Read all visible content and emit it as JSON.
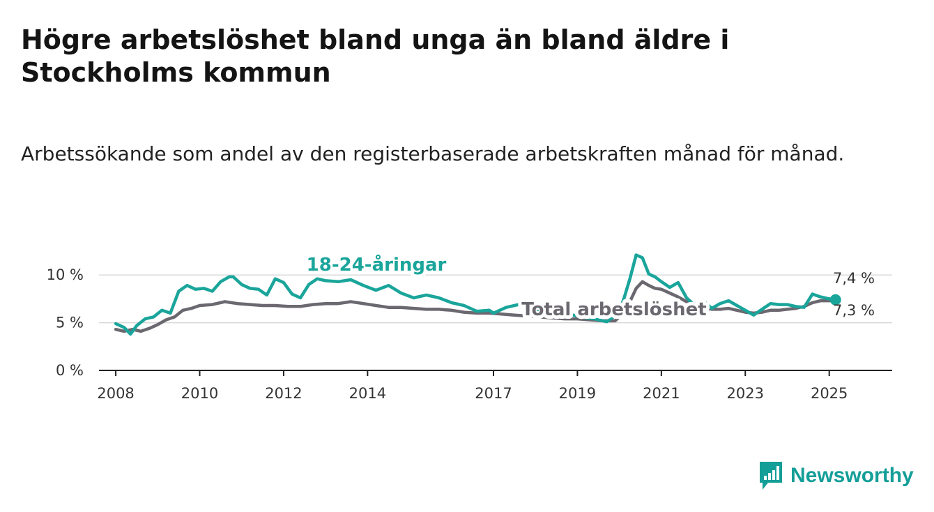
{
  "title": "Högre arbetslöshet bland unga än bland äldre i Stockholms kommun",
  "subtitle": "Arbetssökande som andel av den registerbaserade arbetskraften månad för månad.",
  "brand": "Newsworthy",
  "colors": {
    "youth": "#1aa59b",
    "total": "#6b6870",
    "grid": "#d8d8d8",
    "axis": "#222222"
  },
  "chart_data": {
    "type": "line",
    "title": "Högre arbetslöshet bland unga än bland äldre i Stockholms kommun",
    "subtitle": "Arbetssökande som andel av den registerbaserade arbetskraften månad för månad.",
    "xlabel": "",
    "ylabel": "",
    "ylim": [
      0,
      12.5
    ],
    "xlim": [
      2007.6,
      2026.5
    ],
    "yticks": [
      0,
      5,
      10
    ],
    "ytick_labels": [
      "0 %",
      "5 %",
      "10 %"
    ],
    "xticks": [
      2008,
      2010,
      2012,
      2014,
      2017,
      2019,
      2021,
      2023,
      2025
    ],
    "xtick_labels": [
      "2008",
      "2010",
      "2012",
      "2014",
      "2017",
      "2019",
      "2021",
      "2023",
      "2025"
    ],
    "grid": "horizontal",
    "series": [
      {
        "name": "18-24-åringar",
        "color": "#1aa59b",
        "end_label": "7,4 %",
        "x": [
          2008.0,
          2008.2,
          2008.35,
          2008.5,
          2008.7,
          2008.9,
          2009.1,
          2009.3,
          2009.5,
          2009.7,
          2009.9,
          2010.1,
          2010.3,
          2010.5,
          2010.7,
          2010.8,
          2011.0,
          2011.2,
          2011.4,
          2011.6,
          2011.8,
          2012.0,
          2012.2,
          2012.4,
          2012.6,
          2012.8,
          2013.0,
          2013.3,
          2013.6,
          2013.9,
          2014.2,
          2014.5,
          2014.8,
          2015.1,
          2015.4,
          2015.7,
          2016.0,
          2016.3,
          2016.6,
          2016.9,
          2017.0,
          2017.3,
          2017.6,
          2017.9,
          2018.2,
          2018.5,
          2018.8,
          2019.1,
          2019.4,
          2019.7,
          2019.95,
          2020.1,
          2020.25,
          2020.4,
          2020.55,
          2020.7,
          2020.85,
          2021.0,
          2021.2,
          2021.4,
          2021.6,
          2021.8,
          2022.0,
          2022.2,
          2022.4,
          2022.6,
          2022.8,
          2023.0,
          2023.2,
          2023.4,
          2023.6,
          2023.8,
          2024.0,
          2024.2,
          2024.4,
          2024.6,
          2024.8,
          2025.0,
          2025.15
        ],
        "values": [
          4.9,
          4.5,
          3.8,
          4.7,
          5.4,
          5.6,
          6.3,
          6.0,
          8.3,
          8.9,
          8.5,
          8.6,
          8.3,
          9.3,
          9.8,
          9.8,
          9.0,
          8.6,
          8.5,
          7.9,
          9.6,
          9.2,
          8.0,
          7.6,
          9.0,
          9.6,
          9.4,
          9.3,
          9.5,
          8.9,
          8.4,
          8.9,
          8.1,
          7.6,
          7.9,
          7.6,
          7.1,
          6.8,
          6.2,
          6.3,
          6.0,
          6.6,
          6.9,
          6.4,
          6.1,
          5.8,
          5.9,
          5.6,
          5.4,
          5.1,
          5.9,
          7.4,
          9.6,
          12.1,
          11.8,
          10.1,
          9.8,
          9.3,
          8.7,
          9.2,
          7.6,
          6.8,
          7.3,
          6.5,
          7.0,
          7.3,
          6.8,
          6.3,
          5.8,
          6.4,
          7.0,
          6.9,
          6.9,
          6.7,
          6.6,
          8.0,
          7.7,
          7.5,
          7.4
        ]
      },
      {
        "name": "Total arbetslöshet",
        "color": "#6b6870",
        "end_label": "7,3 %",
        "x": [
          2008.0,
          2008.2,
          2008.4,
          2008.6,
          2008.8,
          2009.0,
          2009.2,
          2009.4,
          2009.6,
          2009.8,
          2010.0,
          2010.3,
          2010.6,
          2010.9,
          2011.2,
          2011.5,
          2011.8,
          2012.1,
          2012.4,
          2012.7,
          2013.0,
          2013.3,
          2013.6,
          2013.9,
          2014.2,
          2014.5,
          2014.8,
          2015.1,
          2015.4,
          2015.7,
          2016.0,
          2016.3,
          2016.6,
          2016.9,
          2017.2,
          2017.5,
          2017.8,
          2018.1,
          2018.4,
          2018.7,
          2019.0,
          2019.3,
          2019.6,
          2019.9,
          2020.1,
          2020.25,
          2020.4,
          2020.55,
          2020.7,
          2020.85,
          2021.0,
          2021.2,
          2021.4,
          2021.6,
          2021.8,
          2022.0,
          2022.2,
          2022.4,
          2022.6,
          2022.8,
          2023.0,
          2023.2,
          2023.4,
          2023.6,
          2023.8,
          2024.0,
          2024.2,
          2024.4,
          2024.6,
          2024.8,
          2025.0,
          2025.15
        ],
        "values": [
          4.3,
          4.1,
          4.3,
          4.1,
          4.4,
          4.8,
          5.3,
          5.6,
          6.3,
          6.5,
          6.8,
          6.9,
          7.2,
          7.0,
          6.9,
          6.8,
          6.8,
          6.7,
          6.7,
          6.9,
          7.0,
          7.0,
          7.2,
          7.0,
          6.8,
          6.6,
          6.6,
          6.5,
          6.4,
          6.4,
          6.3,
          6.1,
          6.0,
          6.0,
          5.9,
          5.8,
          5.7,
          5.6,
          5.5,
          5.4,
          5.4,
          5.3,
          5.2,
          5.2,
          6.0,
          7.2,
          8.6,
          9.3,
          8.9,
          8.6,
          8.5,
          8.1,
          7.7,
          7.2,
          6.8,
          6.6,
          6.4,
          6.4,
          6.5,
          6.3,
          6.1,
          6.0,
          6.1,
          6.3,
          6.3,
          6.4,
          6.5,
          6.7,
          7.1,
          7.3,
          7.3,
          7.3
        ]
      }
    ],
    "annotations": [
      {
        "text": "18-24-åringar",
        "series": 0
      },
      {
        "text": "Total arbetslöshet",
        "series": 1
      }
    ]
  }
}
